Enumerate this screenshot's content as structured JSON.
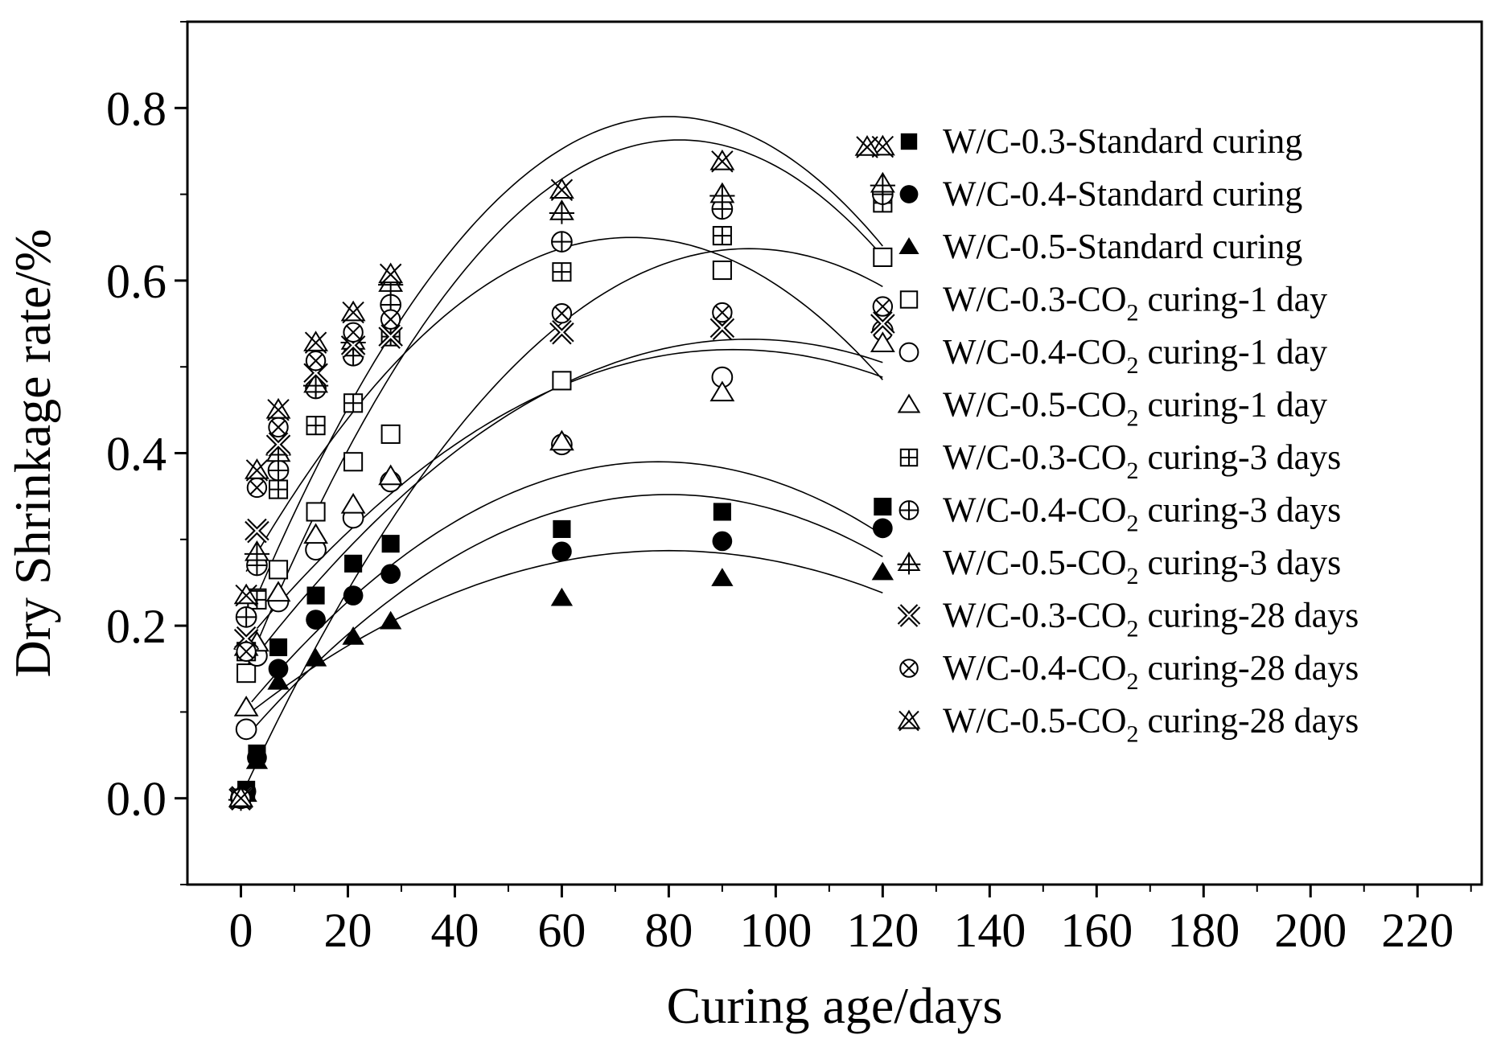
{
  "chart_data": {
    "type": "scatter",
    "title": "",
    "xlabel": "Curing age/days",
    "ylabel": "Dry Shrinkage rate/%",
    "xlim": [
      -10,
      232
    ],
    "ylim": [
      -0.1,
      0.9
    ],
    "xticks": [
      0,
      20,
      40,
      60,
      80,
      100,
      120,
      140,
      160,
      180,
      200,
      220
    ],
    "yticks": [
      0.0,
      0.2,
      0.4,
      0.6,
      0.8
    ],
    "xtick_labels": [
      "0",
      "20",
      "40",
      "60",
      "80",
      "100",
      "120",
      "140",
      "160",
      "180",
      "200",
      "220"
    ],
    "ytick_labels": [
      "0.0",
      "0.2",
      "0.4",
      "0.6",
      "0.8"
    ],
    "legend_position": "right",
    "series": [
      {
        "name": "W/C-0.3-Standard curing",
        "label_main": "W/C-0.3-Standard curing",
        "label_sub": "",
        "label_tail": "",
        "marker": "square-filled",
        "x": [
          0,
          1,
          3,
          7,
          14,
          21,
          28,
          60,
          90,
          120
        ],
        "y": [
          0.0,
          0.01,
          0.052,
          0.175,
          0.235,
          0.272,
          0.295,
          0.312,
          0.332,
          0.338
        ]
      },
      {
        "name": "W/C-0.4-Standard curing",
        "label_main": "W/C-0.4-Standard curing",
        "label_sub": "",
        "label_tail": "",
        "marker": "circle-filled",
        "x": [
          0,
          1,
          3,
          7,
          14,
          21,
          28,
          60,
          90,
          120
        ],
        "y": [
          0.0,
          0.008,
          0.047,
          0.15,
          0.207,
          0.235,
          0.26,
          0.286,
          0.298,
          0.313
        ]
      },
      {
        "name": "W/C-0.5-Standard curing",
        "label_main": "W/C-0.5-Standard curing",
        "label_sub": "",
        "label_tail": "",
        "marker": "triangle-filled",
        "x": [
          0,
          1,
          3,
          7,
          14,
          21,
          28,
          60,
          90,
          120
        ],
        "y": [
          0.0,
          0.005,
          0.043,
          0.135,
          0.162,
          0.187,
          0.205,
          0.232,
          0.255,
          0.262
        ]
      },
      {
        "name": "W/C-0.3-CO2 curing-1 day",
        "label_main": "W/C-0.3-CO",
        "label_sub": "2",
        "label_tail": " curing-1 day",
        "marker": "square-open",
        "x": [
          0,
          1,
          3,
          7,
          14,
          21,
          28,
          60,
          90,
          120
        ],
        "y": [
          0.0,
          0.145,
          0.232,
          0.265,
          0.332,
          0.39,
          0.422,
          0.484,
          0.612,
          0.627
        ]
      },
      {
        "name": "W/C-0.4-CO2 curing-1 day",
        "label_main": "W/C-0.4-CO",
        "label_sub": "2",
        "label_tail": " curing-1 day",
        "marker": "circle-open",
        "x": [
          0,
          1,
          3,
          7,
          14,
          21,
          28,
          60,
          90,
          120
        ],
        "y": [
          0.0,
          0.08,
          0.165,
          0.228,
          0.288,
          0.325,
          0.367,
          0.41,
          0.488,
          0.542
        ]
      },
      {
        "name": "W/C-0.5-CO2 curing-1 day",
        "label_main": "W/C-0.5-CO",
        "label_sub": "2",
        "label_tail": " curing-1 day",
        "marker": "triangle-open",
        "x": [
          0,
          1,
          3,
          7,
          14,
          21,
          28,
          60,
          90,
          120
        ],
        "y": [
          0.0,
          0.105,
          0.18,
          0.238,
          0.305,
          0.34,
          0.373,
          0.413,
          0.47,
          0.527
        ]
      },
      {
        "name": "W/C-0.3-CO2 curing-3 days",
        "label_main": "W/C-0.3-CO",
        "label_sub": "2",
        "label_tail": " curing-3 days",
        "marker": "square-plus",
        "x": [
          0,
          1,
          3,
          7,
          14,
          21,
          28,
          60,
          90,
          120
        ],
        "y": [
          0.0,
          0.17,
          0.23,
          0.358,
          0.432,
          0.458,
          0.535,
          0.61,
          0.652,
          0.69
        ]
      },
      {
        "name": "W/C-0.4-CO2 curing-3 days",
        "label_main": "W/C-0.4-CO",
        "label_sub": "2",
        "label_tail": " curing-3 days",
        "marker": "circle-plus",
        "x": [
          0,
          1,
          3,
          7,
          14,
          21,
          28,
          60,
          90,
          120
        ],
        "y": [
          0.0,
          0.21,
          0.27,
          0.38,
          0.475,
          0.513,
          0.572,
          0.645,
          0.683,
          0.7
        ]
      },
      {
        "name": "W/C-0.5-CO2 curing-3 days",
        "label_main": "W/C-0.5-CO",
        "label_sub": "2",
        "label_tail": " curing-3 days",
        "marker": "triangle-plus",
        "x": [
          0,
          1,
          3,
          7,
          14,
          21,
          28,
          60,
          90,
          120
        ],
        "y": [
          0.0,
          0.175,
          0.285,
          0.4,
          0.48,
          0.53,
          0.597,
          0.68,
          0.7,
          0.712
        ]
      },
      {
        "name": "W/C-0.3-CO2 curing-28 days",
        "label_main": "W/C-0.3-CO",
        "label_sub": "2",
        "label_tail": " curing-28 days",
        "marker": "x-open",
        "x": [
          0,
          1,
          3,
          7,
          14,
          21,
          28,
          60,
          90,
          120
        ],
        "y": [
          0.0,
          0.185,
          0.31,
          0.41,
          0.493,
          0.525,
          0.535,
          0.54,
          0.545,
          0.55
        ]
      },
      {
        "name": "W/C-0.4-CO2 curing-28 days",
        "label_main": "W/C-0.4-CO",
        "label_sub": "2",
        "label_tail": " curing-28 days",
        "marker": "circle-x",
        "x": [
          0,
          1,
          3,
          7,
          14,
          21,
          28,
          60,
          90,
          120
        ],
        "y": [
          0.0,
          0.17,
          0.36,
          0.43,
          0.507,
          0.54,
          0.555,
          0.562,
          0.563,
          0.57
        ]
      },
      {
        "name": "W/C-0.5-CO2 curing-28 days",
        "label_main": "W/C-0.5-CO",
        "label_sub": "2",
        "label_tail": " curing-28 days",
        "marker": "triangle-x",
        "x": [
          0,
          1,
          3,
          7,
          14,
          21,
          28,
          60,
          90,
          120
        ],
        "y": [
          0.0,
          0.235,
          0.38,
          0.45,
          0.528,
          0.563,
          0.607,
          0.705,
          0.738,
          0.755
        ]
      }
    ],
    "fit_curves": [
      {
        "name": "fit-W/C-0.3-Standard curing",
        "vertex_x": 78,
        "vertex_y": 0.39,
        "x_range": [
          2,
          120
        ],
        "y_at_2": 0.06,
        "y_at_120": 0.305
      },
      {
        "name": "fit-W/C-0.4-Standard curing",
        "vertex_x": 80,
        "vertex_y": 0.352,
        "x_range": [
          2,
          120
        ],
        "y_at_2": 0.05,
        "y_at_120": 0.28
      },
      {
        "name": "fit-W/C-0.5-Standard curing",
        "vertex_x": 80,
        "vertex_y": 0.287,
        "x_range": [
          2,
          120
        ],
        "y_at_2": 0.055,
        "y_at_120": 0.238
      },
      {
        "name": "fit-W/C-0.3-CO2 curing-1 day",
        "vertex_x": 95,
        "vertex_y": 0.637,
        "x_range": [
          1,
          120
        ],
        "y_at_2": 0.17,
        "y_at_120": 0.593
      },
      {
        "name": "fit-W/C-0.4-CO2 curing-1 day",
        "vertex_x": 92,
        "vertex_y": 0.52,
        "x_range": [
          1,
          120
        ],
        "y_at_2": 0.13,
        "y_at_120": 0.488
      },
      {
        "name": "fit-W/C-0.5-CO2 curing-1 day",
        "vertex_x": 95,
        "vertex_y": 0.532,
        "x_range": [
          1,
          120
        ],
        "y_at_2": 0.14,
        "y_at_120": 0.505
      },
      {
        "name": "fit-W/C-0.4-CO2 curing-3 days",
        "vertex_x": 73,
        "vertex_y": 0.65,
        "x_range": [
          1,
          120
        ],
        "y_at_2": 0.22,
        "y_at_120": 0.485
      },
      {
        "name": "fit-W/C-0.5-CO2 curing-3 days",
        "vertex_x": 80,
        "vertex_y": 0.79,
        "x_range": [
          1,
          120
        ],
        "y_at_2": 0.22,
        "y_at_120": 0.64
      },
      {
        "name": "fit-W/C-0.3-CO2 curing-3 days",
        "vertex_x": 82,
        "vertex_y": 0.763,
        "x_range": [
          1,
          120
        ],
        "y_at_2": 0.21,
        "y_at_120": 0.628
      }
    ]
  }
}
